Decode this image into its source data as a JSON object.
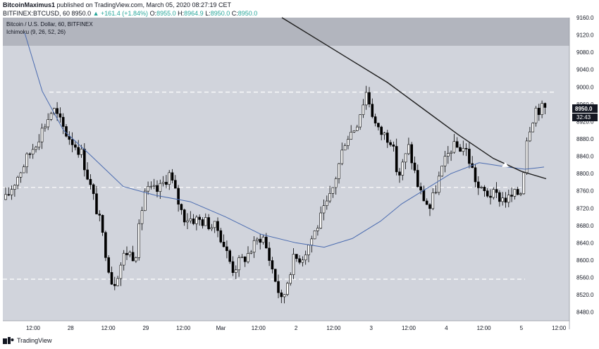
{
  "header": {
    "line1_author": "BitcoinMaximus1",
    "line1_rest": " published on TradingView.com, March 05, 2020 08:27:19 CET",
    "symbol": "BITFINEX:BTCUSD, 60",
    "price": "8950.0",
    "change": "▲ +161.4 (+1.84%)",
    "o_label": "O:",
    "o_val": "8955.0",
    "h_label": "H:",
    "h_val": "8964.9",
    "l_label": "L:",
    "l_val": "8950.0",
    "c_label": "C:",
    "c_val": "8950.0"
  },
  "chart_title": "Bitcoin / U.S. Dollar, 60, BITFINEX",
  "indicator_label": "Ichimoku (9, 26, 52, 26)",
  "last_price_tag": "8950.0",
  "countdown_tag": "32:43",
  "footer_brand": "TradingView",
  "colors": {
    "background": "#d1d4dc",
    "band": "#b2b5be",
    "dashed": "#ffffff",
    "blue_line": "#4a6bb0",
    "black_line": "#1e1e1e",
    "candle_up_fill": "#ffffff",
    "candle_down_fill": "#000000",
    "candle_outline": "#000000"
  },
  "chart_data": {
    "type": "candlestick",
    "ylim": [
      8460,
      9160
    ],
    "y_ticks": [
      "9160.0",
      "9120.0",
      "9080.0",
      "9040.0",
      "9000.0",
      "8960.0",
      "8920.0",
      "8880.0",
      "8840.0",
      "8800.0",
      "8760.0",
      "8720.0",
      "8680.0",
      "8640.0",
      "8600.0",
      "8560.0",
      "8520.0",
      "8480.0"
    ],
    "x_ticks": [
      "12:00",
      "28",
      "12:00",
      "29",
      "12:00",
      "Mar",
      "12:00",
      "2",
      "12:00",
      "3",
      "12:00",
      "4",
      "12:00",
      "5",
      "12:00"
    ],
    "horizontal_levels": [
      8988,
      8768,
      8556
    ],
    "shaded_band": [
      9095,
      9160
    ]
  }
}
